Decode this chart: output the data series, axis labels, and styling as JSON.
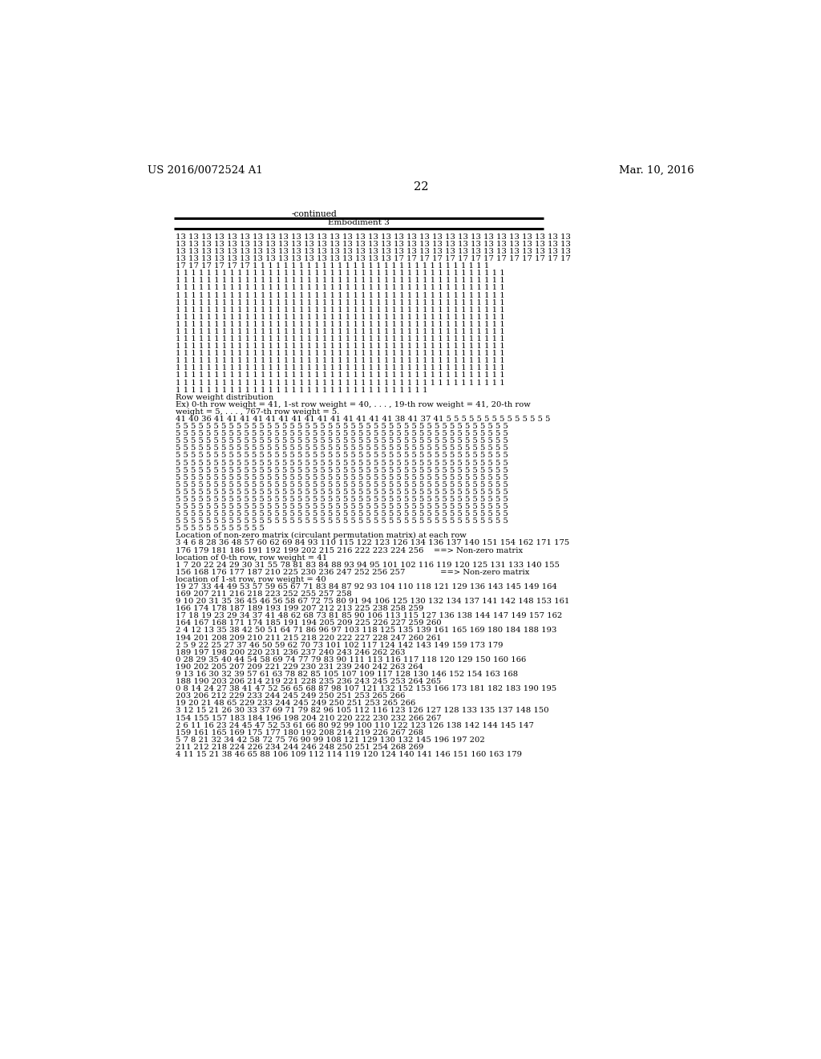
{
  "header_left": "US 2016/0072524 A1",
  "header_right": "Mar. 10, 2016",
  "page_number": "22",
  "continued_label": "-continued",
  "table_title": "Embodiment 3",
  "background_color": "#ffffff",
  "text_color": "#000000",
  "body_font_size": 7.2,
  "header_font_size": 9.5,
  "content": [
    "13 13 13 13 13 13 13 13 13 13 13 13 13 13 13 13 13 13 13 13 13 13 13 13 13 13 13 13 13 13 13",
    "13 13 13 13 13 13 13 13 13 13 13 13 13 13 13 13 13 13 13 13 13 13 13 13 13 13 13 13 13 13 13",
    "13 13 13 13 13 13 13 13 13 13 13 13 13 13 13 13 13 13 13 13 13 13 13 13 13 13 13 13 13 13 13",
    "13 13 13 13 13 13 13 13 13 13 13 13 13 13 13 13 13 17 17 17 17 17 17 17 17 17 17 17 17 17 17",
    "17 17 17 17 17 17 1 1 1 1 1 1 1 1 1 1 1 1 1 1 1 1 1 1 1 1 1 1 1 1 1 1 1 1 1 1 1",
    "1 1 1 1 1 1 1 1 1 1 1 1 1 1 1 1 1 1 1 1 1 1 1 1 1 1 1 1 1 1 1 1 1 1 1 1 1 1 1 1 1 1 1",
    "1 1 1 1 1 1 1 1 1 1 1 1 1 1 1 1 1 1 1 1 1 1 1 1 1 1 1 1 1 1 1 1 1 1 1 1 1 1 1 1 1 1 1",
    "1 1 1 1 1 1 1 1 1 1 1 1 1 1 1 1 1 1 1 1 1 1 1 1 1 1 1 1 1 1 1 1 1 1 1 1 1 1 1 1 1 1 1",
    "1 1 1 1 1 1 1 1 1 1 1 1 1 1 1 1 1 1 1 1 1 1 1 1 1 1 1 1 1 1 1 1 1 1 1 1 1 1 1 1 1 1 1",
    "1 1 1 1 1 1 1 1 1 1 1 1 1 1 1 1 1 1 1 1 1 1 1 1 1 1 1 1 1 1 1 1 1 1 1 1 1 1 1 1 1 1 1",
    "1 1 1 1 1 1 1 1 1 1 1 1 1 1 1 1 1 1 1 1 1 1 1 1 1 1 1 1 1 1 1 1 1 1 1 1 1 1 1 1 1 1 1",
    "1 1 1 1 1 1 1 1 1 1 1 1 1 1 1 1 1 1 1 1 1 1 1 1 1 1 1 1 1 1 1 1 1 1 1 1 1 1 1 1 1 1 1",
    "1 1 1 1 1 1 1 1 1 1 1 1 1 1 1 1 1 1 1 1 1 1 1 1 1 1 1 1 1 1 1 1 1 1 1 1 1 1 1 1 1 1 1",
    "1 1 1 1 1 1 1 1 1 1 1 1 1 1 1 1 1 1 1 1 1 1 1 1 1 1 1 1 1 1 1 1 1 1 1 1 1 1 1 1 1 1 1",
    "1 1 1 1 1 1 1 1 1 1 1 1 1 1 1 1 1 1 1 1 1 1 1 1 1 1 1 1 1 1 1 1 1 1 1 1 1 1 1 1 1 1 1",
    "1 1 1 1 1 1 1 1 1 1 1 1 1 1 1 1 1 1 1 1 1 1 1 1 1 1 1 1 1 1 1 1 1 1 1 1 1 1 1 1 1 1 1",
    "1 1 1 1 1 1 1 1 1 1 1 1 1 1 1 1 1 1 1 1 1 1 1 1 1 1 1 1 1 1 1 1 1 1 1 1 1 1 1 1 1 1 1",
    "1 1 1 1 1 1 1 1 1 1 1 1 1 1 1 1 1 1 1 1 1 1 1 1 1 1 1 1 1 1 1 1 1 1 1 1 1 1 1 1 1 1 1",
    "1 1 1 1 1 1 1 1 1 1 1 1 1 1 1 1 1 1 1 1 1 1 1 1 1 1 1 1 1 1 1 1 1 1 1 1 1 1 1 1 1 1 1",
    "1 1 1 1 1 1 1 1 1 1 1 1 1 1 1 1 1 1 1 1 1 1 1 1 1 1 1 1 1 1 1 1 1 1 1 1 1 1 1 1 1 1 1",
    "1 1 1 1 1 1 1 1 1 1 1 1 1 1 1 1 1 1 1 1 1 1 1 1 1 1 1 1 1 1 1 1 1 1 1 1 1 1 1 1 1 1 1",
    "1 1 1 1 1 1 1 1 1 1 1 1 1 1 1 1 1 1 1 1 1 1 1 1 1 1 1 1 1 1 1 1 1",
    "Row weight distribution",
    "Ex) 0-th row weight = 41, 1-st row weight = 40, . . . , 19-th row weight = 41, 20-th row",
    "weight = 5, . . . , 767-th row weight = 5.",
    "41 40 36 41 41 41 41 41 41 41 41 41 41 41 41 41 41 38 41 37 41 5 5 5 5 5 5 5 5 5 5 5 5 5 5",
    "5 5 5 5 5 5 5 5 5 5 5 5 5 5 5 5 5 5 5 5 5 5 5 5 5 5 5 5 5 5 5 5 5 5 5 5 5 5 5 5 5 5 5 5",
    "5 5 5 5 5 5 5 5 5 5 5 5 5 5 5 5 5 5 5 5 5 5 5 5 5 5 5 5 5 5 5 5 5 5 5 5 5 5 5 5 5 5 5 5",
    "5 5 5 5 5 5 5 5 5 5 5 5 5 5 5 5 5 5 5 5 5 5 5 5 5 5 5 5 5 5 5 5 5 5 5 5 5 5 5 5 5 5 5 5",
    "5 5 5 5 5 5 5 5 5 5 5 5 5 5 5 5 5 5 5 5 5 5 5 5 5 5 5 5 5 5 5 5 5 5 5 5 5 5 5 5 5 5 5 5",
    "5 5 5 5 5 5 5 5 5 5 5 5 5 5 5 5 5 5 5 5 5 5 5 5 5 5 5 5 5 5 5 5 5 5 5 5 5 5 5 5 5 5 5 5",
    "5 5 5 5 5 5 5 5 5 5 5 5 5 5 5 5 5 5 5 5 5 5 5 5 5 5 5 5 5 5 5 5 5 5 5 5 5 5 5 5 5 5 5 5",
    "5 5 5 5 5 5 5 5 5 5 5 5 5 5 5 5 5 5 5 5 5 5 5 5 5 5 5 5 5 5 5 5 5 5 5 5 5 5 5 5 5 5 5 5",
    "5 5 5 5 5 5 5 5 5 5 5 5 5 5 5 5 5 5 5 5 5 5 5 5 5 5 5 5 5 5 5 5 5 5 5 5 5 5 5 5 5 5 5 5",
    "5 5 5 5 5 5 5 5 5 5 5 5 5 5 5 5 5 5 5 5 5 5 5 5 5 5 5 5 5 5 5 5 5 5 5 5 5 5 5 5 5 5 5 5",
    "5 5 5 5 5 5 5 5 5 5 5 5 5 5 5 5 5 5 5 5 5 5 5 5 5 5 5 5 5 5 5 5 5 5 5 5 5 5 5 5 5 5 5 5",
    "5 5 5 5 5 5 5 5 5 5 5 5 5 5 5 5 5 5 5 5 5 5 5 5 5 5 5 5 5 5 5 5 5 5 5 5 5 5 5 5 5 5 5 5",
    "5 5 5 5 5 5 5 5 5 5 5 5 5 5 5 5 5 5 5 5 5 5 5 5 5 5 5 5 5 5 5 5 5 5 5 5 5 5 5 5 5 5 5 5",
    "5 5 5 5 5 5 5 5 5 5 5 5 5 5 5 5 5 5 5 5 5 5 5 5 5 5 5 5 5 5 5 5 5 5 5 5 5 5 5 5 5 5 5 5",
    "5 5 5 5 5 5 5 5 5 5 5 5 5 5 5 5 5 5 5 5 5 5 5 5 5 5 5 5 5 5 5 5 5 5 5 5 5 5 5 5 5 5 5 5",
    "5 5 5 5 5 5 5 5 5 5 5 5",
    "Location of non-zero matrix (circulant permutation matrix) at each row",
    "3 4 6 8 28 36 48 57 60 62 69 84 93 110 115 122 123 126 134 136 137 140 151 154 162 171 175",
    "176 179 181 186 191 192 199 202 215 216 222 223 224 256    ==> Non-zero matrix",
    "location of 0-th row, row weight = 41",
    "1 7 20 22 24 29 30 31 55 78 81 83 84 88 93 94 95 101 102 116 119 120 125 131 133 140 155",
    "156 168 176 177 187 210 225 230 236 247 252 256 257              ==> Non-zero matrix",
    "location of 1-st row, row weight = 40",
    "19 27 33 44 49 53 57 59 65 67 71 83 84 87 92 93 104 110 118 121 129 136 143 145 149 164",
    "169 207 211 216 218 223 252 255 257 258",
    "9 10 20 31 35 36 45 46 56 58 67 72 75 80 91 94 106 125 130 132 134 137 141 142 148 153 161",
    "166 174 178 187 189 193 199 207 212 213 225 238 258 259",
    "17 18 19 23 29 34 37 41 48 62 68 73 81 85 90 106 113 115 127 136 138 144 147 149 157 162",
    "164 167 168 171 174 185 191 194 205 209 225 226 227 259 260",
    "2 4 12 13 35 38 42 50 51 64 71 86 96 97 103 118 125 135 139 161 165 169 180 184 188 193",
    "194 201 208 209 210 211 215 218 220 222 227 228 247 260 261",
    "2 5 9 22 25 27 37 46 50 59 62 70 73 101 102 117 124 142 143 149 159 173 179",
    "189 197 198 200 220 231 236 237 240 243 246 262 263",
    "0 28 29 35 40 44 54 58 69 74 77 79 83 90 111 113 116 117 118 120 129 150 160 166",
    "190 202 205 207 209 221 229 230 231 239 240 242 263 264",
    "9 13 16 30 32 39 57 61 63 78 82 85 105 107 109 117 128 130 146 152 154 163 168",
    "188 190 203 206 214 219 221 228 235 236 243 245 253 264 265",
    "0 8 14 24 27 38 41 47 52 56 65 68 87 98 107 121 132 152 153 166 173 181 182 183 190 195",
    "203 206 212 229 233 244 245 249 250 251 253 265 266",
    "19 20 21 48 65 229 233 244 245 249 250 251 253 265 266",
    "3 12 15 21 26 30 33 37 69 71 79 82 96 105 112 116 123 126 127 128 133 135 137 148 150",
    "154 155 157 183 184 196 198 204 210 220 222 230 232 266 267",
    "2 6 11 16 23 24 45 47 52 53 61 66 80 92 99 100 110 122 123 126 138 142 144 145 147",
    "159 161 165 169 175 177 180 192 208 214 219 226 267 268",
    "5 7 8 21 32 34 42 58 72 75 76 90 99 108 121 129 130 132 145 196 197 202",
    "211 212 218 224 226 234 244 246 248 250 251 254 268 269",
    "4 11 15 21 38 46 65 88 106 109 112 114 119 120 124 140 141 146 151 160 163 179"
  ]
}
